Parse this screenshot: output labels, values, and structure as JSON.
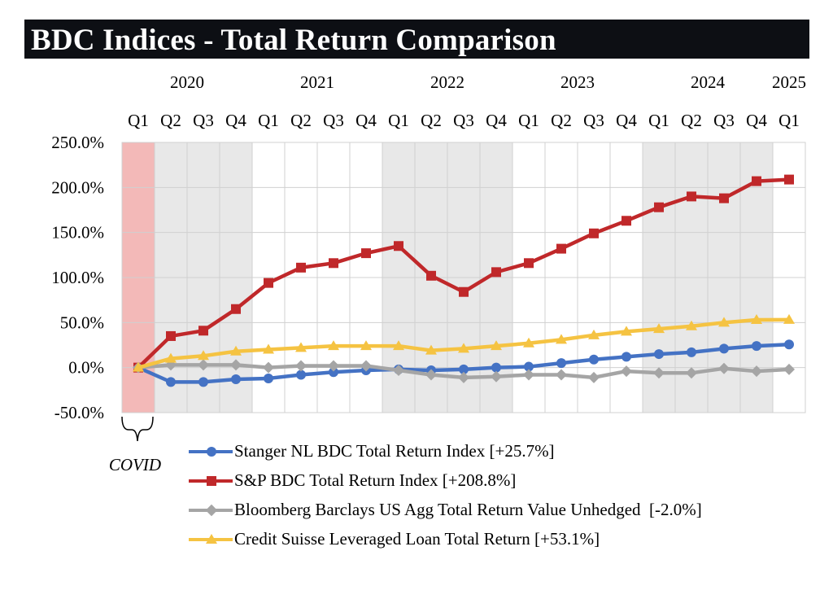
{
  "title": "BDC Indices - Total Return Comparison",
  "annotation": "COVID",
  "colors": {
    "title_bg": "#0d0f14",
    "title_fg": "#ffffff",
    "covid_shade": "#f3b9b8",
    "band_shade": "#e8e8e8",
    "grid": "#d0d0d0"
  },
  "chart_data": {
    "type": "line",
    "title": "BDC Indices - Total Return Comparison",
    "years": [
      "2020",
      "2021",
      "2022",
      "2023",
      "2024",
      "2025"
    ],
    "quarters": [
      "Q1",
      "Q2",
      "Q3",
      "Q4",
      "Q1",
      "Q2",
      "Q3",
      "Q4",
      "Q1",
      "Q2",
      "Q3",
      "Q4",
      "Q1",
      "Q2",
      "Q3",
      "Q4",
      "Q1",
      "Q2",
      "Q3",
      "Q4",
      "Q1"
    ],
    "x": [
      "2020 Q1",
      "2020 Q2",
      "2020 Q3",
      "2020 Q4",
      "2021 Q1",
      "2021 Q2",
      "2021 Q3",
      "2021 Q4",
      "2022 Q1",
      "2022 Q2",
      "2022 Q3",
      "2022 Q4",
      "2023 Q1",
      "2023 Q2",
      "2023 Q3",
      "2023 Q4",
      "2024 Q1",
      "2024 Q2",
      "2024 Q3",
      "2024 Q4",
      "2025 Q1"
    ],
    "y_ticks": [
      "250.0%",
      "200.0%",
      "150.0%",
      "100.0%",
      "50.0%",
      "0.0%",
      "-50.0%"
    ],
    "ylim": [
      -50,
      250
    ],
    "grid": true,
    "legend_position": "bottom",
    "series": [
      {
        "name": "Stanger NL BDC Total Return Index [+25.7%]",
        "color": "#4472c4",
        "marker": "circle",
        "values": [
          0,
          -16,
          -16,
          -13,
          -12,
          -8,
          -5,
          -3,
          -2,
          -3,
          -2,
          0,
          1,
          5,
          9,
          12,
          15,
          17,
          21,
          24,
          25.7
        ]
      },
      {
        "name": "S&P BDC Total Return Index [+208.8%]",
        "color": "#c0282a",
        "marker": "square",
        "values": [
          0,
          35,
          41,
          65,
          94,
          111,
          116,
          127,
          135,
          102,
          84,
          106,
          116,
          132,
          149,
          163,
          178,
          190,
          188,
          207,
          208.8
        ]
      },
      {
        "name": "Bloomberg Barclays US Agg Total Return Value Unhedged  [-2.0%]",
        "color": "#a5a5a5",
        "marker": "diamond",
        "values": [
          0,
          3,
          3,
          3,
          0,
          2,
          2,
          2,
          -3,
          -8,
          -11,
          -10,
          -8,
          -8,
          -11,
          -4,
          -6,
          -6,
          -1,
          -4,
          -2.0
        ]
      },
      {
        "name": "Credit Suisse Leveraged Loan Total Return [+53.1%]",
        "color": "#f5c342",
        "marker": "triangle",
        "values": [
          0,
          10,
          13,
          18,
          20,
          22,
          24,
          24,
          24,
          19,
          21,
          24,
          27,
          31,
          36,
          40,
          43,
          46,
          50,
          53,
          53.1
        ]
      }
    ]
  }
}
